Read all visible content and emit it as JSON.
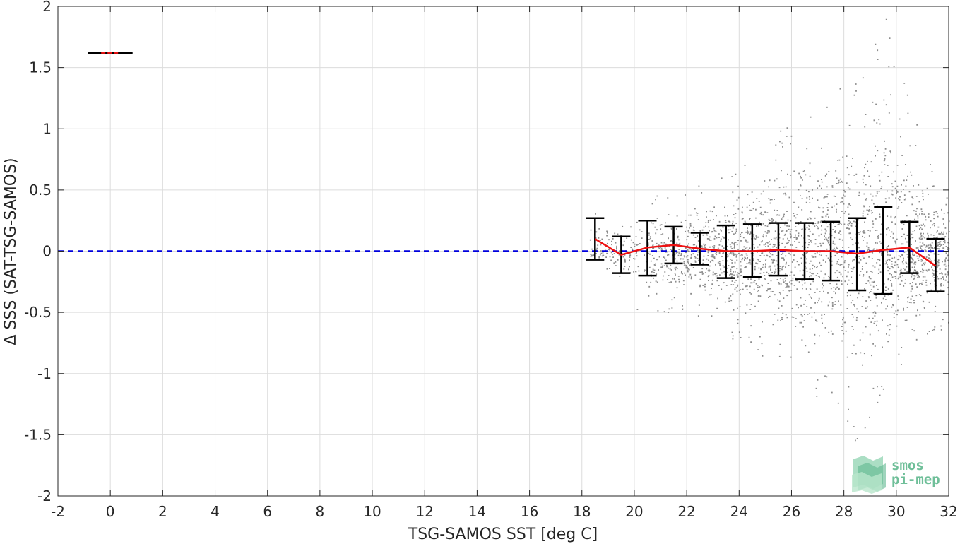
{
  "chart_data": {
    "type": "scatter",
    "title": "",
    "xlabel": "TSG-SAMOS SST [deg C]",
    "ylabel": "Δ SSS (SAT-TSG-SAMOS)",
    "xlim": [
      -2,
      32
    ],
    "ylim": [
      -2,
      2
    ],
    "xticks": [
      -2,
      0,
      2,
      4,
      6,
      8,
      10,
      12,
      14,
      16,
      18,
      20,
      22,
      24,
      26,
      28,
      30,
      32
    ],
    "yticks": [
      -2,
      -1.5,
      -1,
      -0.5,
      0,
      0.5,
      1,
      1.5,
      2
    ],
    "xtick_labels": [
      "-2",
      "0",
      "2",
      "4",
      "6",
      "8",
      "10",
      "12",
      "14",
      "16",
      "18",
      "20",
      "22",
      "24",
      "26",
      "28",
      "30",
      "32"
    ],
    "ytick_labels": [
      "-2",
      "-1.5",
      "-1",
      "-0.5",
      "0",
      "0.5",
      "1",
      "1.5",
      "2"
    ],
    "grid": true,
    "reference_line": {
      "y": 0,
      "style": "dashed",
      "color": "#0000dd"
    },
    "scatter_color": "#808080",
    "scatter_spread": [
      {
        "x": 18.5,
        "lo": -0.08,
        "hi": 0.38
      },
      {
        "x": 19.5,
        "lo": -0.25,
        "hi": 0.32
      },
      {
        "x": 20.5,
        "lo": -0.65,
        "hi": 0.48
      },
      {
        "x": 21.5,
        "lo": -0.45,
        "hi": 0.52
      },
      {
        "x": 22.5,
        "lo": -0.55,
        "hi": 0.55
      },
      {
        "x": 23.5,
        "lo": -0.7,
        "hi": 0.65
      },
      {
        "x": 24.5,
        "lo": -0.75,
        "hi": 0.9
      },
      {
        "x": 25.5,
        "lo": -1.05,
        "hi": 1.0
      },
      {
        "x": 26.5,
        "lo": -1.1,
        "hi": 1.2
      },
      {
        "x": 27.5,
        "lo": -1.3,
        "hi": 1.4
      },
      {
        "x": 28.5,
        "lo": -1.6,
        "hi": 1.6
      },
      {
        "x": 29.5,
        "lo": -1.2,
        "hi": 2.0
      },
      {
        "x": 30.5,
        "lo": -0.8,
        "hi": 1.35
      },
      {
        "x": 31.5,
        "lo": -0.65,
        "hi": 0.55
      }
    ],
    "series": [
      {
        "type": "line",
        "color": "#ee1111",
        "x": [
          18.5,
          19.5,
          20.5,
          21.5,
          22.5,
          23.5,
          24.5,
          25.5,
          26.5,
          27.5,
          28.5,
          29.5,
          30.5,
          31.5
        ],
        "y": [
          0.1,
          -0.03,
          0.03,
          0.05,
          0.02,
          0.0,
          0.0,
          0.01,
          0.0,
          0.0,
          -0.02,
          0.01,
          0.03,
          -0.12
        ]
      },
      {
        "type": "errorbar",
        "color": "#000000",
        "x": [
          18.5,
          19.5,
          20.5,
          21.5,
          22.5,
          23.5,
          24.5,
          25.5,
          26.5,
          27.5,
          28.5,
          29.5,
          30.5,
          31.5
        ],
        "upper": [
          0.27,
          0.12,
          0.25,
          0.2,
          0.15,
          0.21,
          0.22,
          0.23,
          0.23,
          0.24,
          0.27,
          0.36,
          0.24,
          0.1
        ],
        "lower": [
          -0.07,
          -0.18,
          -0.2,
          -0.1,
          -0.11,
          -0.22,
          -0.21,
          -0.2,
          -0.23,
          -0.24,
          -0.32,
          -0.35,
          -0.18,
          -0.33
        ]
      }
    ],
    "legend_markers": [
      {
        "x": 0,
        "y": 1.62,
        "halfwidth": 0.85,
        "color": "#000000"
      },
      {
        "x": 0,
        "y": 1.62,
        "halfwidth": 0.35,
        "color": "#ee1111"
      }
    ]
  },
  "logo": {
    "line1": "smos",
    "line2": "pi-mep"
  }
}
